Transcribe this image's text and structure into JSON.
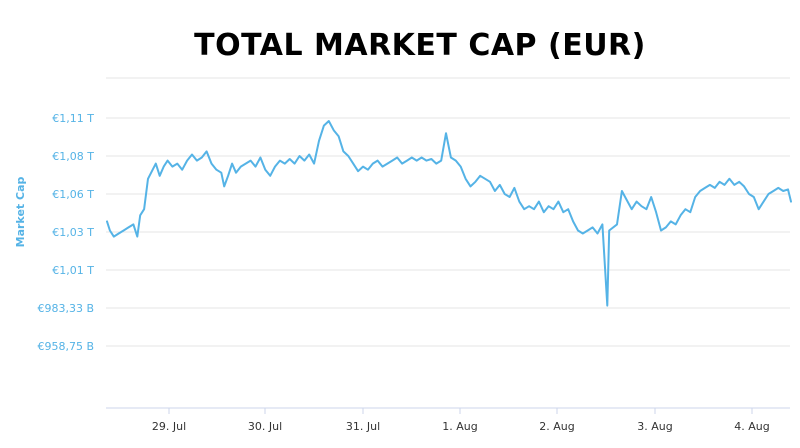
{
  "chart_data": {
    "type": "line",
    "title": "TOTAL MARKET CAP (EUR)",
    "ylabel": "Market Cap",
    "y_ticks": [
      {
        "label": "€1,11 T",
        "value": 1110
      },
      {
        "label": "€1,08 T",
        "value": 1085
      },
      {
        "label": "€1,06 T",
        "value": 1060
      },
      {
        "label": "€1,03 T",
        "value": 1035
      },
      {
        "label": "€1,01 T",
        "value": 1010
      },
      {
        "label": "€983,33 B",
        "value": 983.33
      },
      {
        "label": "€958,75 B",
        "value": 958.75
      }
    ],
    "x_ticks": [
      {
        "label": "29. Jul",
        "value": 1
      },
      {
        "label": "30. Jul",
        "value": 2
      },
      {
        "label": "31. Jul",
        "value": 3
      },
      {
        "label": "1. Aug",
        "value": 4
      },
      {
        "label": "2. Aug",
        "value": 5
      },
      {
        "label": "3. Aug",
        "value": 6
      },
      {
        "label": "4. Aug",
        "value": 7
      }
    ],
    "grid": true,
    "line_color": "#55b3e6",
    "series": [
      {
        "values": [
          [
            0.38,
            1042
          ],
          [
            0.41,
            1036
          ],
          [
            0.45,
            1032
          ],
          [
            0.5,
            1034
          ],
          [
            0.55,
            1036
          ],
          [
            0.6,
            1038
          ],
          [
            0.65,
            1040
          ],
          [
            0.69,
            1032
          ],
          [
            0.72,
            1046
          ],
          [
            0.76,
            1050
          ],
          [
            0.8,
            1070
          ],
          [
            0.84,
            1075
          ],
          [
            0.88,
            1080
          ],
          [
            0.92,
            1072
          ],
          [
            0.96,
            1078
          ],
          [
            1.0,
            1082
          ],
          [
            1.05,
            1078
          ],
          [
            1.1,
            1080
          ],
          [
            1.15,
            1076
          ],
          [
            1.2,
            1082
          ],
          [
            1.25,
            1086
          ],
          [
            1.3,
            1082
          ],
          [
            1.35,
            1084
          ],
          [
            1.4,
            1088
          ],
          [
            1.45,
            1080
          ],
          [
            1.5,
            1076
          ],
          [
            1.55,
            1074
          ],
          [
            1.58,
            1065
          ],
          [
            1.62,
            1072
          ],
          [
            1.66,
            1080
          ],
          [
            1.7,
            1074
          ],
          [
            1.75,
            1078
          ],
          [
            1.8,
            1080
          ],
          [
            1.85,
            1082
          ],
          [
            1.9,
            1078
          ],
          [
            1.95,
            1084
          ],
          [
            2.0,
            1076
          ],
          [
            2.05,
            1072
          ],
          [
            2.1,
            1078
          ],
          [
            2.15,
            1082
          ],
          [
            2.2,
            1080
          ],
          [
            2.25,
            1083
          ],
          [
            2.3,
            1080
          ],
          [
            2.35,
            1085
          ],
          [
            2.4,
            1082
          ],
          [
            2.45,
            1086
          ],
          [
            2.5,
            1080
          ],
          [
            2.55,
            1095
          ],
          [
            2.6,
            1105
          ],
          [
            2.65,
            1108
          ],
          [
            2.7,
            1102
          ],
          [
            2.75,
            1098
          ],
          [
            2.8,
            1088
          ],
          [
            2.85,
            1085
          ],
          [
            2.9,
            1080
          ],
          [
            2.95,
            1075
          ],
          [
            3.0,
            1078
          ],
          [
            3.05,
            1076
          ],
          [
            3.1,
            1080
          ],
          [
            3.15,
            1082
          ],
          [
            3.2,
            1078
          ],
          [
            3.25,
            1080
          ],
          [
            3.3,
            1082
          ],
          [
            3.35,
            1084
          ],
          [
            3.4,
            1080
          ],
          [
            3.45,
            1082
          ],
          [
            3.5,
            1084
          ],
          [
            3.55,
            1082
          ],
          [
            3.6,
            1084
          ],
          [
            3.65,
            1082
          ],
          [
            3.7,
            1083
          ],
          [
            3.75,
            1080
          ],
          [
            3.8,
            1082
          ],
          [
            3.85,
            1100
          ],
          [
            3.9,
            1084
          ],
          [
            3.95,
            1082
          ],
          [
            4.0,
            1078
          ],
          [
            4.05,
            1070
          ],
          [
            4.1,
            1065
          ],
          [
            4.15,
            1068
          ],
          [
            4.2,
            1072
          ],
          [
            4.25,
            1070
          ],
          [
            4.3,
            1068
          ],
          [
            4.35,
            1062
          ],
          [
            4.4,
            1066
          ],
          [
            4.45,
            1060
          ],
          [
            4.5,
            1058
          ],
          [
            4.55,
            1064
          ],
          [
            4.6,
            1055
          ],
          [
            4.65,
            1050
          ],
          [
            4.7,
            1052
          ],
          [
            4.75,
            1050
          ],
          [
            4.8,
            1055
          ],
          [
            4.85,
            1048
          ],
          [
            4.9,
            1052
          ],
          [
            4.95,
            1050
          ],
          [
            5.0,
            1055
          ],
          [
            5.05,
            1048
          ],
          [
            5.1,
            1050
          ],
          [
            5.15,
            1042
          ],
          [
            5.2,
            1036
          ],
          [
            5.25,
            1034
          ],
          [
            5.3,
            1036
          ],
          [
            5.35,
            1038
          ],
          [
            5.4,
            1034
          ],
          [
            5.45,
            1040
          ],
          [
            5.5,
            985
          ],
          [
            5.52,
            1036
          ],
          [
            5.6,
            1040
          ],
          [
            5.65,
            1062
          ],
          [
            5.7,
            1056
          ],
          [
            5.75,
            1050
          ],
          [
            5.8,
            1055
          ],
          [
            5.85,
            1052
          ],
          [
            5.9,
            1050
          ],
          [
            5.95,
            1058
          ],
          [
            6.0,
            1048
          ],
          [
            6.05,
            1036
          ],
          [
            6.1,
            1038
          ],
          [
            6.15,
            1042
          ],
          [
            6.2,
            1040
          ],
          [
            6.25,
            1046
          ],
          [
            6.3,
            1050
          ],
          [
            6.35,
            1048
          ],
          [
            6.4,
            1058
          ],
          [
            6.45,
            1062
          ],
          [
            6.5,
            1064
          ],
          [
            6.55,
            1066
          ],
          [
            6.6,
            1064
          ],
          [
            6.65,
            1068
          ],
          [
            6.7,
            1066
          ],
          [
            6.75,
            1070
          ],
          [
            6.8,
            1066
          ],
          [
            6.85,
            1068
          ],
          [
            6.9,
            1065
          ],
          [
            6.95,
            1060
          ],
          [
            7.0,
            1058
          ],
          [
            7.05,
            1050
          ],
          [
            7.1,
            1055
          ],
          [
            7.15,
            1060
          ],
          [
            7.2,
            1062
          ],
          [
            7.25,
            1064
          ],
          [
            7.3,
            1062
          ],
          [
            7.35,
            1063
          ],
          [
            7.38,
            1055
          ]
        ]
      }
    ]
  }
}
